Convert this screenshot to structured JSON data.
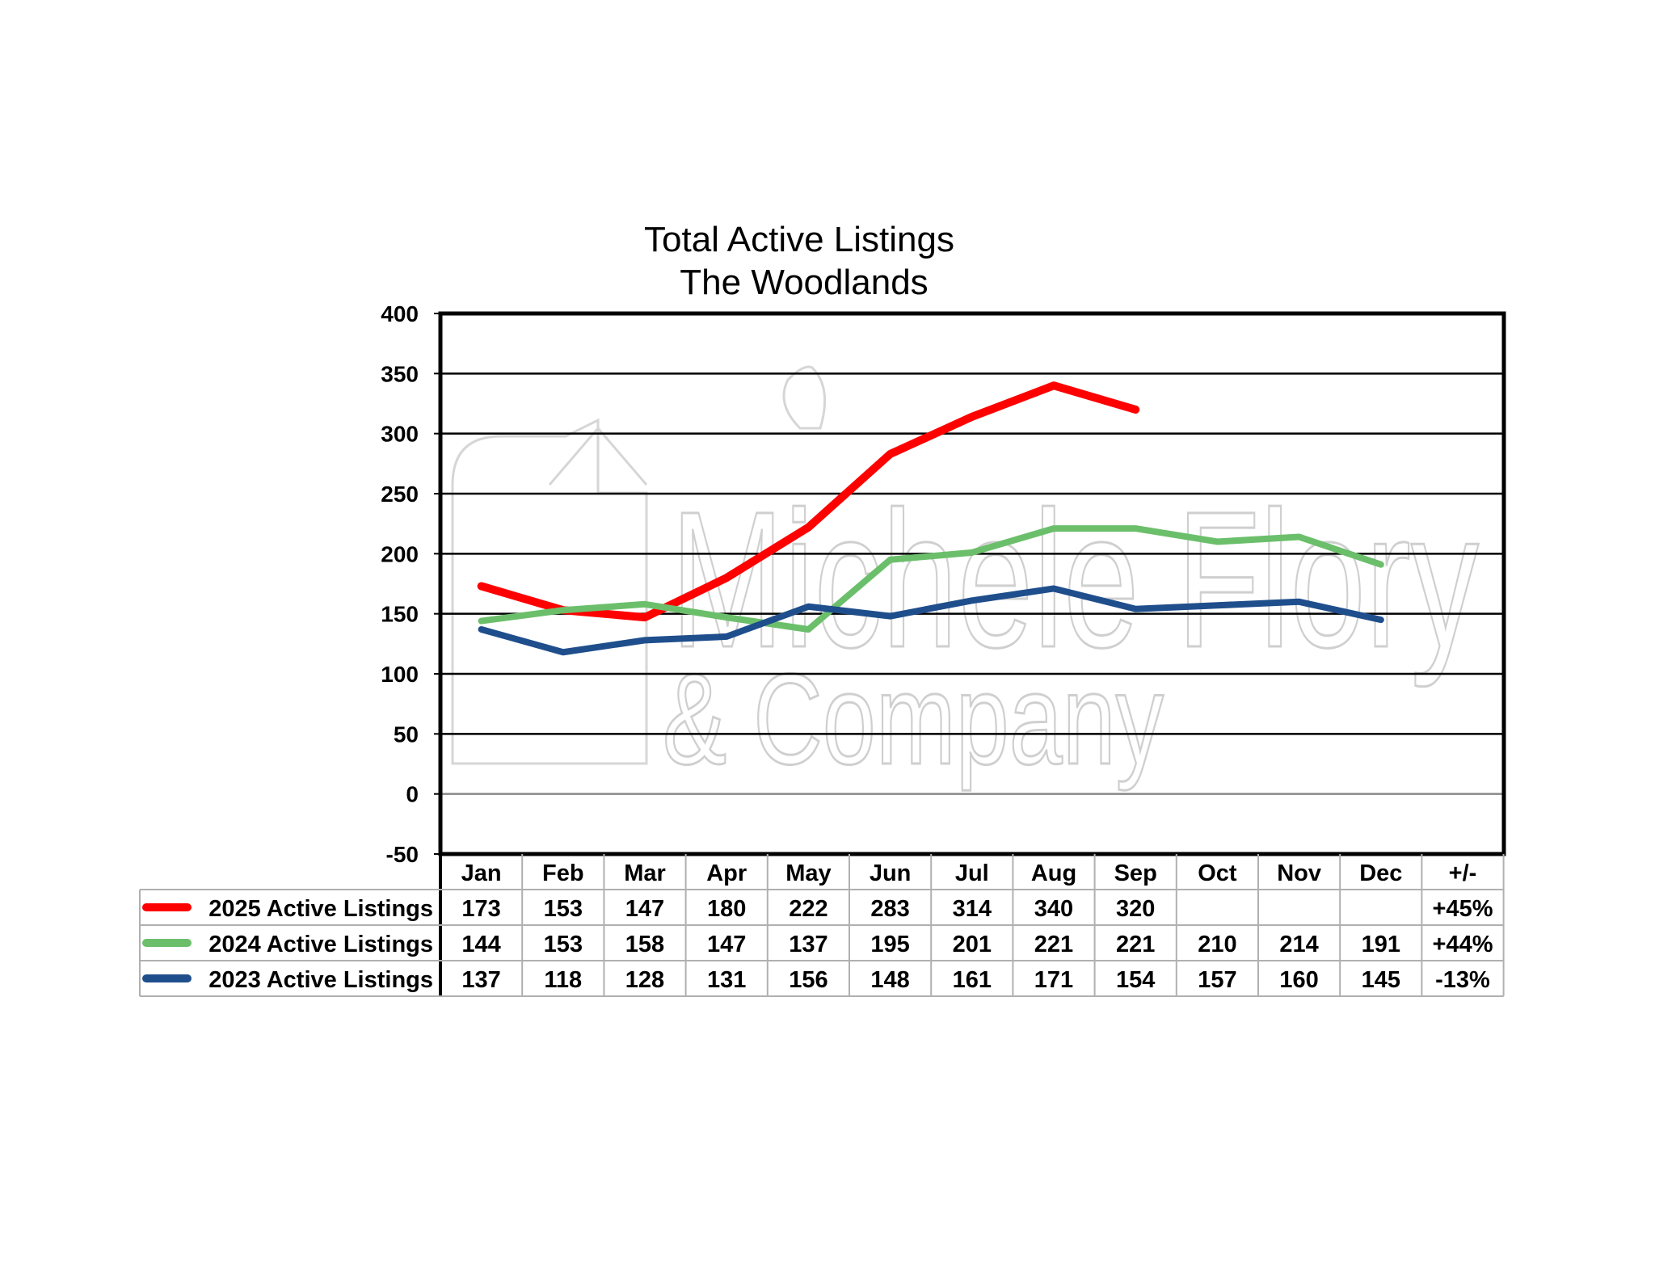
{
  "chart_data": {
    "type": "line",
    "title": "Total Active Listings",
    "subtitle": "The Woodlands",
    "watermark": {
      "line1": "Michele Flory",
      "line2": "& Company"
    },
    "categories": [
      "Jan",
      "Feb",
      "Mar",
      "Apr",
      "May",
      "Jun",
      "Jul",
      "Aug",
      "Sep",
      "Oct",
      "Nov",
      "Dec"
    ],
    "change_header": "+/-",
    "ylim": [
      -50,
      400
    ],
    "yticks": [
      -50,
      0,
      50,
      100,
      150,
      200,
      250,
      300,
      350,
      400
    ],
    "grid": true,
    "legend": "table-below",
    "series": [
      {
        "name": "2025 Active Listings",
        "color": "#ff0000",
        "values": [
          173,
          153,
          147,
          180,
          222,
          283,
          314,
          340,
          320,
          null,
          null,
          null
        ],
        "change": "+45%"
      },
      {
        "name": "2024 Active Listings",
        "color": "#6bbf6b",
        "values": [
          144,
          153,
          158,
          147,
          137,
          195,
          201,
          221,
          221,
          210,
          214,
          191
        ],
        "change": "+44%"
      },
      {
        "name": "2023 Active Listings",
        "color": "#1f4e8c",
        "values": [
          137,
          118,
          128,
          131,
          156,
          148,
          161,
          171,
          154,
          157,
          160,
          145
        ],
        "change": "-13%"
      }
    ]
  }
}
